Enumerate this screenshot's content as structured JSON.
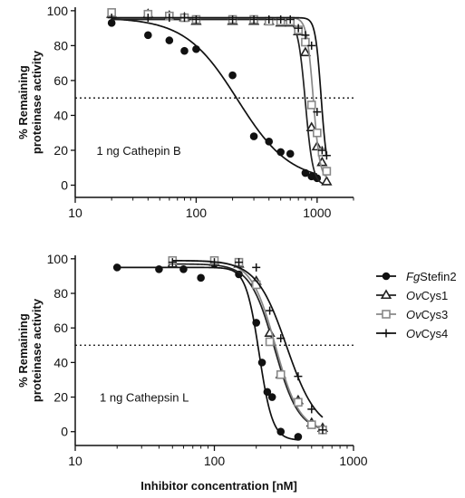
{
  "chart_data": [
    {
      "type": "scatter",
      "annotation": "1 ng Cathepin B",
      "ylabel_lines": [
        "% Remaining",
        "proteinase activity"
      ],
      "xlabel": "",
      "x_scale": "log",
      "xlim": [
        10,
        2000
      ],
      "ylim": [
        -7,
        102
      ],
      "x_ticks": [
        10,
        100,
        1000
      ],
      "x_tick_labels": [
        "10",
        "100",
        "1000"
      ],
      "y_ticks": [
        0,
        20,
        40,
        60,
        80,
        100
      ],
      "y_tick_labels": [
        "0",
        "20",
        "40",
        "60",
        "80",
        "100"
      ],
      "reference_line_y": 50,
      "series": [
        {
          "marker": "circle",
          "x": [
            20,
            40,
            60,
            80,
            100,
            200,
            300,
            400,
            500,
            600,
            800,
            900,
            1000
          ],
          "y": [
            93,
            86,
            83,
            77,
            78,
            63,
            28,
            25,
            19,
            18,
            7,
            5,
            4
          ],
          "curve": {
            "bottom": 2,
            "top": 96,
            "ic50": 220,
            "hill": 2.0
          }
        },
        {
          "marker": "triangle",
          "x": [
            20,
            40,
            60,
            80,
            100,
            200,
            300,
            400,
            500,
            600,
            700,
            800,
            900,
            1000,
            1100,
            1200
          ],
          "y": [
            98,
            98,
            97,
            96,
            94,
            94,
            94,
            94,
            93,
            93,
            88,
            76,
            33,
            22,
            13,
            2
          ],
          "curve": {
            "bottom": 0,
            "top": 95,
            "ic50": 800,
            "hill": 14
          }
        },
        {
          "marker": "square",
          "x": [
            20,
            40,
            60,
            80,
            100,
            200,
            300,
            400,
            500,
            600,
            700,
            800,
            900,
            1000,
            1100,
            1200
          ],
          "y": [
            99,
            98,
            97,
            96,
            95,
            95,
            95,
            94,
            94,
            94,
            89,
            82,
            46,
            30,
            19,
            8
          ],
          "curve": {
            "bottom": 3,
            "top": 96,
            "ic50": 930,
            "hill": 16
          }
        },
        {
          "marker": "plus",
          "x": [
            20,
            40,
            60,
            80,
            100,
            200,
            300,
            400,
            500,
            600,
            700,
            800,
            900,
            1000,
            1100,
            1200
          ],
          "y": [
            96,
            96,
            96,
            96,
            95,
            95,
            95,
            95,
            95,
            95,
            90,
            86,
            80,
            42,
            20,
            17
          ],
          "curve": {
            "bottom": 5,
            "top": 96,
            "ic50": 1080,
            "hill": 18
          }
        }
      ]
    },
    {
      "type": "scatter",
      "annotation": "1 ng Cathepsin L",
      "ylabel_lines": [
        "% Remaining",
        "proteinase activity"
      ],
      "xlabel": "Inhibitor concentration [nM]",
      "x_scale": "log",
      "xlim": [
        10,
        1000
      ],
      "ylim": [
        -8,
        102
      ],
      "x_ticks": [
        10,
        100,
        1000
      ],
      "x_tick_labels": [
        "10",
        "100",
        "1000"
      ],
      "y_ticks": [
        0,
        20,
        40,
        60,
        80,
        100
      ],
      "y_tick_labels": [
        "0",
        "20",
        "40",
        "60",
        "80",
        "100"
      ],
      "reference_line_y": 50,
      "series": [
        {
          "marker": "circle",
          "x": [
            20,
            40,
            60,
            80,
            100,
            150,
            200,
            220,
            240,
            260,
            300,
            400
          ],
          "y": [
            95,
            94,
            94,
            89,
            97,
            91,
            63,
            40,
            23,
            20,
            0,
            -3
          ],
          "curve": {
            "bottom": -5,
            "top": 95,
            "ic50": 210,
            "hill": 9
          }
        },
        {
          "marker": "triangle",
          "x": [
            50,
            100,
            150,
            200,
            250,
            300,
            400,
            500,
            600
          ],
          "y": [
            97,
            98,
            97,
            87,
            57,
            33,
            18,
            5,
            2
          ],
          "curve": {
            "bottom": 0,
            "top": 97,
            "ic50": 270,
            "hill": 5.0
          }
        },
        {
          "marker": "square",
          "x": [
            50,
            100,
            150,
            200,
            250,
            300,
            400,
            500,
            600
          ],
          "y": [
            99,
            99,
            98,
            85,
            52,
            33,
            17,
            4,
            1
          ],
          "curve": {
            "bottom": 0,
            "top": 99,
            "ic50": 275,
            "hill": 5.0
          }
        },
        {
          "marker": "plus",
          "x": [
            50,
            100,
            150,
            200,
            250,
            300,
            400,
            500,
            600
          ],
          "y": [
            98,
            98,
            98,
            95,
            70,
            54,
            32,
            13,
            1
          ],
          "curve": {
            "bottom": 0,
            "top": 99,
            "ic50": 330,
            "hill": 4.0
          }
        }
      ]
    }
  ],
  "legend": {
    "items": [
      {
        "marker": "circle",
        "italic": "Fg",
        "text": "Stefin2"
      },
      {
        "marker": "triangle",
        "italic": "Ov",
        "text": "Cys1"
      },
      {
        "marker": "square",
        "italic": "Ov",
        "text": "Cys3"
      },
      {
        "marker": "plus",
        "italic": "Ov",
        "text": "Cys4"
      }
    ]
  },
  "styles": {
    "circle": {
      "color": "#111111",
      "curve": "#111111"
    },
    "triangle": {
      "color": "#222222",
      "curve": "#222222"
    },
    "square": {
      "color": "#888888",
      "curve": "#888888"
    },
    "plus": {
      "color": "#111111",
      "curve": "#111111"
    }
  }
}
